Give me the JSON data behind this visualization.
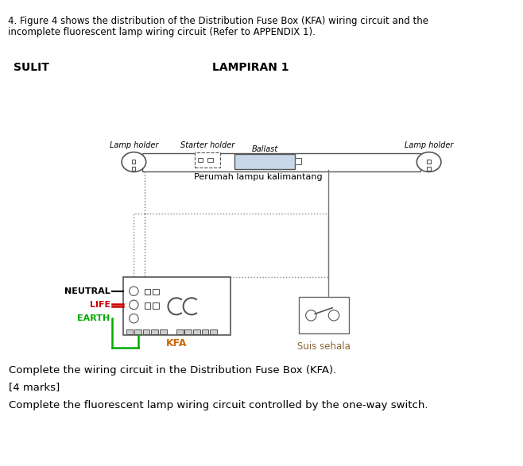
{
  "fig_width": 6.58,
  "fig_height": 5.87,
  "dpi": 100,
  "bg_color": "#ffffff",
  "header_line1": "4. Figure 4 shows the distribution of the Distribution Fuse Box (KFA) wiring circuit and the",
  "header_line2": "incomplete fluorescent lamp wiring circuit (Refer to APPENDIX 1).",
  "sulit_text": "SULIT",
  "lampiran_text": "LAMPIRAN 1",
  "starter_holder_text": "Starter holder",
  "lamp_holder_left_text": "Lamp holder",
  "lamp_holder_right_text": "Lamp holder",
  "ballast_text": "Ballast",
  "perumah_text": "Perumah lampu kalimantang",
  "neutral_text": "NEUTRAL",
  "life_text": "LIFE",
  "earth_text": "EARTH",
  "kfa_text": "KFA",
  "suis_text": "Suis sehala",
  "complete_text1": "Complete the wiring circuit in the Distribution Fuse Box (KFA).",
  "marks_text": "[4 marks]",
  "complete_text2": "Complete the fluorescent lamp wiring circuit controlled by the one-way switch.",
  "neutral_color": "#000000",
  "life_color": "#cc0000",
  "earth_color": "#00aa00",
  "kfa_label_color": "#cc6600",
  "suis_label_color": "#886633"
}
